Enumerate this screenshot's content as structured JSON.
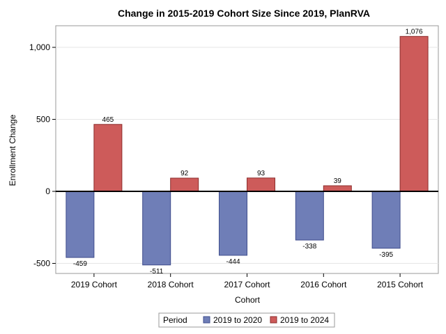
{
  "chart_data": {
    "type": "bar",
    "title": "Change in 2015-2019 Cohort Size Since 2019, PlanRVA",
    "xlabel": "Cohort",
    "ylabel": "Enrollment Change",
    "categories": [
      "2019 Cohort",
      "2018 Cohort",
      "2017 Cohort",
      "2016 Cohort",
      "2015 Cohort"
    ],
    "series": [
      {
        "name": "2019 to 2020",
        "values": [
          -459,
          -511,
          -444,
          -338,
          -395
        ],
        "labels": [
          "-459",
          "-511",
          "-444",
          "-338",
          "-395"
        ],
        "color": "#6f7eb7",
        "stroke": "#3f4d8c"
      },
      {
        "name": "2019 to 2024",
        "values": [
          465,
          92,
          93,
          39,
          1076
        ],
        "labels": [
          "465",
          "92",
          "93",
          "39",
          "1,076"
        ],
        "color": "#cd5b5a",
        "stroke": "#8c2d2c"
      }
    ],
    "ylim": [
      -570,
      1150
    ],
    "yticks": [
      {
        "value": -500,
        "label": "-500"
      },
      {
        "value": 0,
        "label": "0"
      },
      {
        "value": 500,
        "label": "500"
      },
      {
        "value": 1000,
        "label": "1,000"
      }
    ],
    "grid": true,
    "legend": {
      "title": "Period",
      "position": "bottom"
    }
  }
}
